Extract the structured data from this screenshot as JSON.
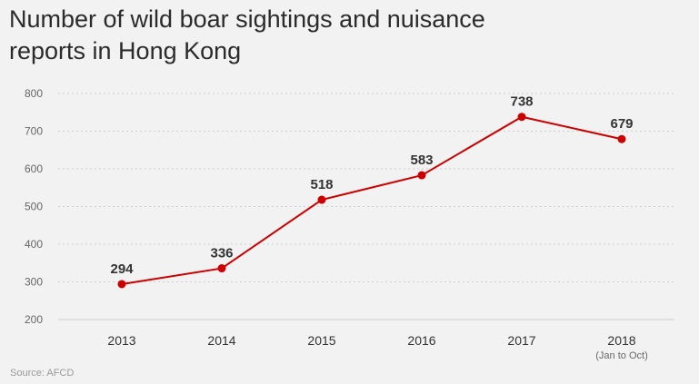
{
  "chart_data": {
    "type": "line",
    "title": "Number of wild boar sightings and nuisance reports in Hong Kong",
    "categories": [
      "2013",
      "2014",
      "2015",
      "2016",
      "2017",
      "2018"
    ],
    "category_notes": [
      "",
      "",
      "",
      "",
      "",
      "(Jan to Oct)"
    ],
    "values": [
      294,
      336,
      518,
      583,
      738,
      679
    ],
    "data_labels": [
      "294",
      "336",
      "518",
      "583",
      "738",
      "679"
    ],
    "ylim": [
      200,
      800
    ],
    "yticks": [
      "200",
      "300",
      "400",
      "500",
      "600",
      "700",
      "800"
    ],
    "xlabel": "",
    "ylabel": "",
    "grid": true,
    "line_color": "#cc0000",
    "source": "Source: AFCD"
  }
}
